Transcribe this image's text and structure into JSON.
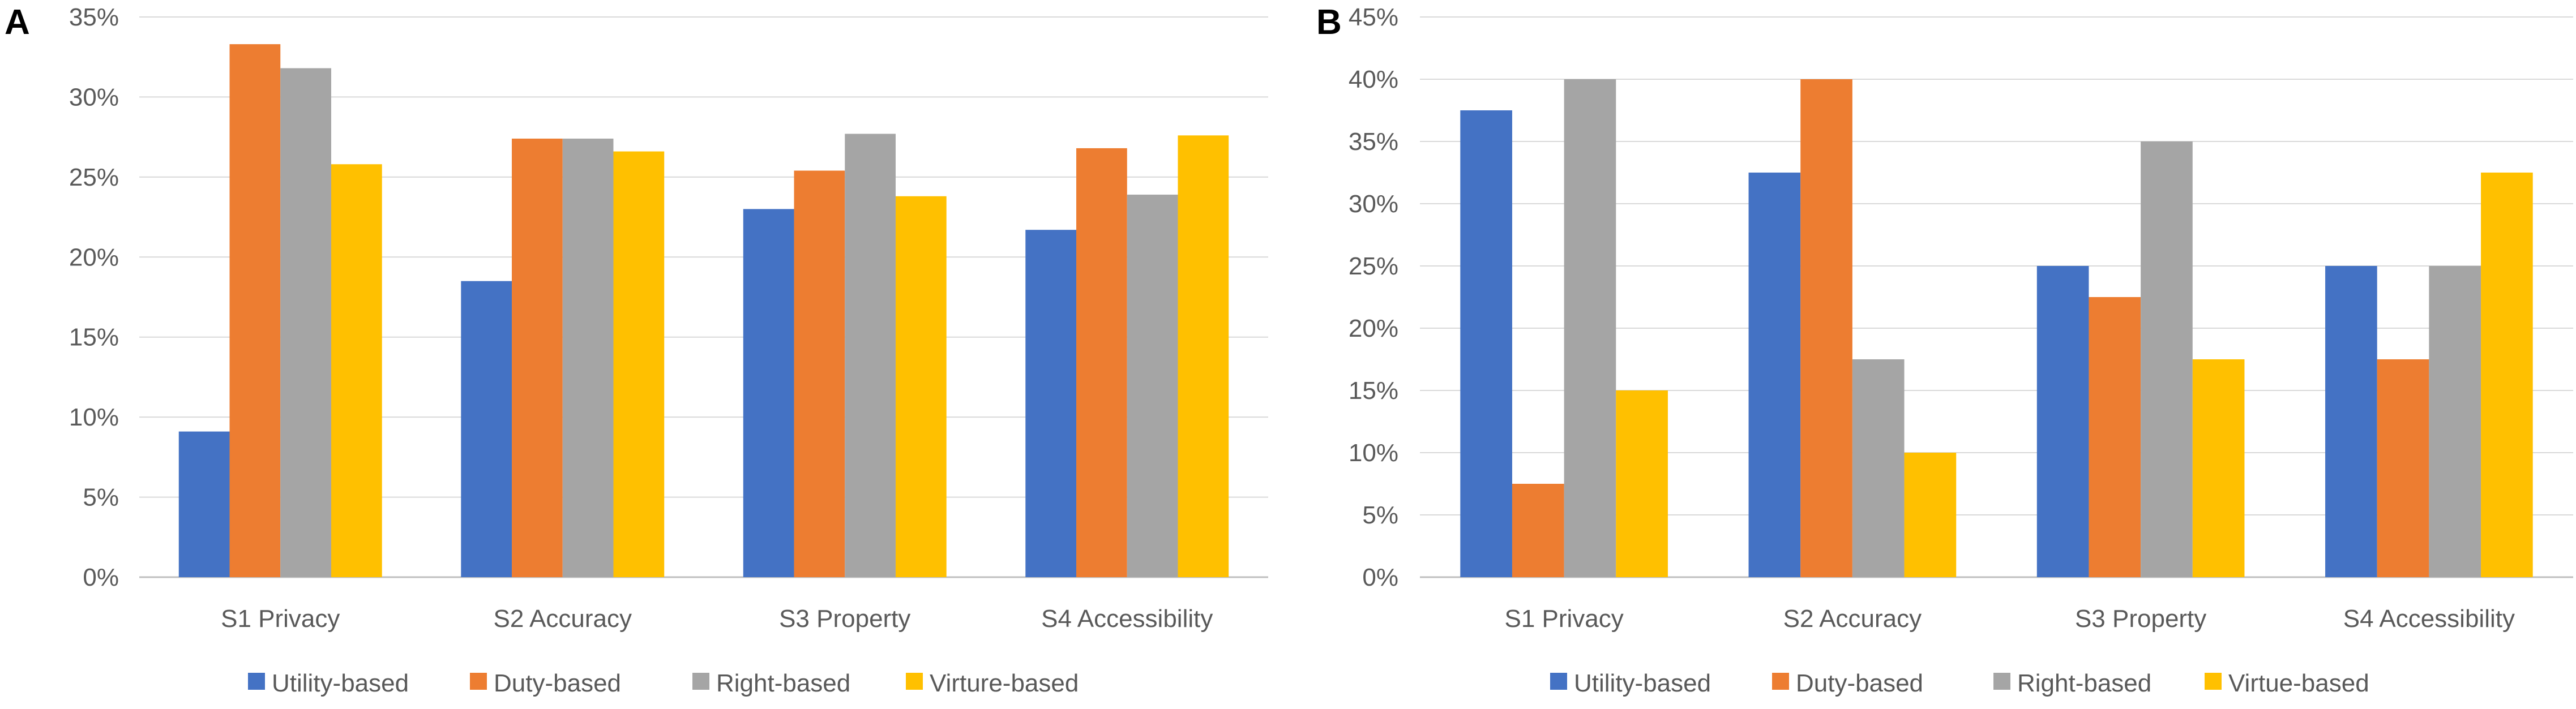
{
  "chart_data": [
    {
      "panel_label": "A",
      "type": "bar",
      "categories": [
        "S1 Privacy",
        "S2 Accuracy",
        "S3 Property",
        "S4 Accessibility"
      ],
      "series": [
        {
          "name": "Utility-based",
          "color": "#4472C4",
          "values": [
            9.1,
            18.5,
            23.0,
            21.7
          ]
        },
        {
          "name": "Duty-based",
          "color": "#ED7D31",
          "values": [
            33.3,
            27.4,
            25.4,
            26.8
          ]
        },
        {
          "name": "Right-based",
          "color": "#A5A5A5",
          "values": [
            31.8,
            27.4,
            27.7,
            23.9
          ]
        },
        {
          "name": "Virture-based",
          "color": "#FFC000",
          "values": [
            25.8,
            26.6,
            23.8,
            27.6
          ]
        }
      ],
      "ylim": [
        0,
        35
      ],
      "yticks": [
        0,
        5,
        10,
        15,
        20,
        25,
        30,
        35
      ],
      "ytick_labels": [
        "0%",
        "5%",
        "10%",
        "15%",
        "20%",
        "25%",
        "30%",
        "35%"
      ],
      "title": "",
      "xlabel": "",
      "ylabel": "",
      "grid": true,
      "legend": "bottom"
    },
    {
      "panel_label": "B",
      "type": "bar",
      "categories": [
        "S1 Privacy",
        "S2 Accuracy",
        "S3 Property",
        "S4 Accessibility"
      ],
      "series": [
        {
          "name": "Utility-based",
          "color": "#4472C4",
          "values": [
            37.5,
            32.5,
            25.0,
            25.0
          ]
        },
        {
          "name": "Duty-based",
          "color": "#ED7D31",
          "values": [
            7.5,
            40.0,
            22.5,
            17.5
          ]
        },
        {
          "name": "Right-based",
          "color": "#A5A5A5",
          "values": [
            40.0,
            17.5,
            35.0,
            25.0
          ]
        },
        {
          "name": "Virtue-based",
          "color": "#FFC000",
          "values": [
            15.0,
            10.0,
            17.5,
            32.5
          ]
        }
      ],
      "ylim": [
        0,
        45
      ],
      "yticks": [
        0,
        5,
        10,
        15,
        20,
        25,
        30,
        35,
        40,
        45
      ],
      "ytick_labels": [
        "0%",
        "5%",
        "10%",
        "15%",
        "20%",
        "25%",
        "30%",
        "35%",
        "40%",
        "45%"
      ],
      "title": "",
      "xlabel": "",
      "ylabel": "",
      "grid": true,
      "legend": "bottom"
    }
  ]
}
